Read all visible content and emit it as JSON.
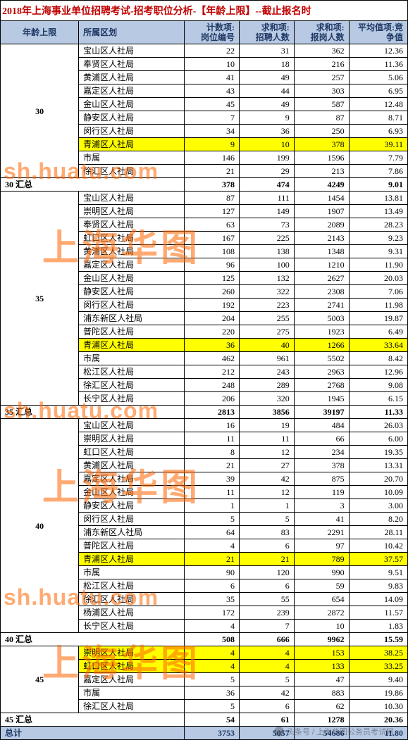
{
  "title": "2018年上海事业单位招聘考试-招考职位分析-【年龄上限】--截止报名时",
  "headers": {
    "age": "年龄上限",
    "district": "所属区划",
    "count": "计数项:\n岗位编号",
    "recruit": "求和项:\n招聘人数",
    "apply": "求和项:\n报岗人数",
    "avg": "平均值项:竞\n争值"
  },
  "groups": [
    {
      "age": "30",
      "rows": [
        {
          "d": "宝山区人社局",
          "c": 22,
          "r": 31,
          "a": 362,
          "v": "12.36",
          "hl": false
        },
        {
          "d": "奉贤区人社局",
          "c": 10,
          "r": 18,
          "a": 216,
          "v": "11.36",
          "hl": false
        },
        {
          "d": "黄浦区人社局",
          "c": 41,
          "r": 49,
          "a": 257,
          "v": "5.06",
          "hl": false
        },
        {
          "d": "嘉定区人社局",
          "c": 43,
          "r": 44,
          "a": 303,
          "v": "6.95",
          "hl": false
        },
        {
          "d": "金山区人社局",
          "c": 45,
          "r": 49,
          "a": 587,
          "v": "12.48",
          "hl": false
        },
        {
          "d": "静安区人社局",
          "c": 7,
          "r": 9,
          "a": 87,
          "v": "8.71",
          "hl": false
        },
        {
          "d": "闵行区人社局",
          "c": 34,
          "r": 36,
          "a": 250,
          "v": "6.93",
          "hl": false
        },
        {
          "d": "青浦区人社局",
          "c": 9,
          "r": 10,
          "a": 378,
          "v": "39.11",
          "hl": true
        },
        {
          "d": "市属",
          "c": 146,
          "r": 199,
          "a": 1596,
          "v": "7.79",
          "hl": false
        },
        {
          "d": "徐汇区人社局",
          "c": 21,
          "r": 29,
          "a": 213,
          "v": "7.86",
          "hl": false
        }
      ],
      "summary": {
        "label": "30 汇总",
        "c": 378,
        "r": 474,
        "a": 4249,
        "v": "9.01"
      }
    },
    {
      "age": "35",
      "rows": [
        {
          "d": "宝山区人社局",
          "c": 87,
          "r": 111,
          "a": 1454,
          "v": "13.81",
          "hl": false
        },
        {
          "d": "崇明区人社局",
          "c": 127,
          "r": 149,
          "a": 1907,
          "v": "13.49",
          "hl": false
        },
        {
          "d": "奉贤区人社局",
          "c": 63,
          "r": 73,
          "a": 2089,
          "v": "28.23",
          "hl": false
        },
        {
          "d": "虹口区人社局",
          "c": 167,
          "r": 225,
          "a": 2143,
          "v": "9.23",
          "hl": false
        },
        {
          "d": "黄浦区人社局",
          "c": 108,
          "r": 138,
          "a": 1348,
          "v": "9.31",
          "hl": false
        },
        {
          "d": "嘉定区人社局",
          "c": 96,
          "r": 100,
          "a": 1210,
          "v": "11.90",
          "hl": false
        },
        {
          "d": "金山区人社局",
          "c": 125,
          "r": 132,
          "a": 2627,
          "v": "20.03",
          "hl": false
        },
        {
          "d": "静安区人社局",
          "c": 260,
          "r": 322,
          "a": 2308,
          "v": "7.06",
          "hl": false
        },
        {
          "d": "闵行区人社局",
          "c": 192,
          "r": 223,
          "a": 2741,
          "v": "11.98",
          "hl": false
        },
        {
          "d": "浦东新区人社局",
          "c": 204,
          "r": 255,
          "a": 5003,
          "v": "19.87",
          "hl": false
        },
        {
          "d": "普陀区人社局",
          "c": 220,
          "r": 275,
          "a": 1923,
          "v": "6.49",
          "hl": false
        },
        {
          "d": "青浦区人社局",
          "c": 36,
          "r": 40,
          "a": 1266,
          "v": "33.64",
          "hl": true
        },
        {
          "d": "市属",
          "c": 462,
          "r": 961,
          "a": 5502,
          "v": "8.42",
          "hl": false
        },
        {
          "d": "松江区人社局",
          "c": 212,
          "r": 243,
          "a": 2963,
          "v": "12.96",
          "hl": false
        },
        {
          "d": "徐汇区人社局",
          "c": 248,
          "r": 289,
          "a": 2768,
          "v": "9.08",
          "hl": false
        },
        {
          "d": "长宁区人社局",
          "c": 206,
          "r": 320,
          "a": 1945,
          "v": "6.15",
          "hl": false
        }
      ],
      "summary": {
        "label": "35 汇总",
        "c": 2813,
        "r": 3856,
        "a": 39197,
        "v": "11.33"
      }
    },
    {
      "age": "40",
      "rows": [
        {
          "d": "宝山区人社局",
          "c": 16,
          "r": 19,
          "a": 484,
          "v": "26.03",
          "hl": false
        },
        {
          "d": "崇明区人社局",
          "c": 11,
          "r": 11,
          "a": 66,
          "v": "6.00",
          "hl": false
        },
        {
          "d": "虹口区人社局",
          "c": 8,
          "r": 12,
          "a": 234,
          "v": "19.35",
          "hl": false
        },
        {
          "d": "黄浦区人社局",
          "c": 21,
          "r": 27,
          "a": 378,
          "v": "13.31",
          "hl": false
        },
        {
          "d": "嘉定区人社局",
          "c": 39,
          "r": 42,
          "a": 875,
          "v": "20.70",
          "hl": false
        },
        {
          "d": "金山区人社局",
          "c": 11,
          "r": 12,
          "a": 119,
          "v": "10.09",
          "hl": false
        },
        {
          "d": "静安区人社局",
          "c": 1,
          "r": 1,
          "a": 3,
          "v": "3.00",
          "hl": false
        },
        {
          "d": "闵行区人社局",
          "c": 5,
          "r": 5,
          "a": 41,
          "v": "8.20",
          "hl": false
        },
        {
          "d": "浦东新区人社局",
          "c": 64,
          "r": 83,
          "a": 2291,
          "v": "28.11",
          "hl": false
        },
        {
          "d": "普陀区人社局",
          "c": 4,
          "r": 6,
          "a": 97,
          "v": "10.42",
          "hl": false
        },
        {
          "d": "青浦区人社局",
          "c": 21,
          "r": 21,
          "a": 789,
          "v": "37.57",
          "hl": true
        },
        {
          "d": "市属",
          "c": 90,
          "r": 120,
          "a": 990,
          "v": "9.51",
          "hl": false
        },
        {
          "d": "松江区人社局",
          "c": 6,
          "r": 6,
          "a": 59,
          "v": "9.83",
          "hl": false
        },
        {
          "d": "徐汇区人社局",
          "c": 35,
          "r": 55,
          "a": 654,
          "v": "14.09",
          "hl": false
        },
        {
          "d": "杨浦区人社局",
          "c": 172,
          "r": 239,
          "a": 2872,
          "v": "11.57",
          "hl": false
        },
        {
          "d": "长宁区人社局",
          "c": 4,
          "r": 7,
          "a": 10,
          "v": "1.83",
          "hl": false
        }
      ],
      "summary": {
        "label": "40 汇总",
        "c": 508,
        "r": 666,
        "a": 9962,
        "v": "15.59"
      }
    },
    {
      "age": "45",
      "rows": [
        {
          "d": "崇明区人社局",
          "c": 4,
          "r": 4,
          "a": 153,
          "v": "38.25",
          "hl": true
        },
        {
          "d": "虹口区人社局",
          "c": 4,
          "r": 4,
          "a": 133,
          "v": "33.25",
          "hl": true
        },
        {
          "d": "嘉定区人社局",
          "c": 5,
          "r": 5,
          "a": 47,
          "v": "9.40",
          "hl": false
        },
        {
          "d": "市属",
          "c": 36,
          "r": 42,
          "a": 883,
          "v": "19.86",
          "hl": false
        },
        {
          "d": "徐汇区人社局",
          "c": 5,
          "r": 6,
          "a": 62,
          "v": "10.30",
          "hl": false
        }
      ],
      "summary": {
        "label": "45 汇总",
        "c": 54,
        "r": 61,
        "a": 1278,
        "v": "20.36"
      }
    }
  ],
  "total": {
    "label": "总计",
    "c": 3753,
    "r": 5057,
    "a": 54686,
    "v": "11.80"
  },
  "watermarks": {
    "url": "sh.huatu.com",
    "cn": "上海华图",
    "footer": "头条号 / 上海华图公务员考试网"
  },
  "colors": {
    "header_bg": "#b7c9e3",
    "header_fg": "#1f3864",
    "highlight_bg": "#ffff00",
    "title_fg": "#c00000",
    "watermark_fg": "#ff6600"
  }
}
